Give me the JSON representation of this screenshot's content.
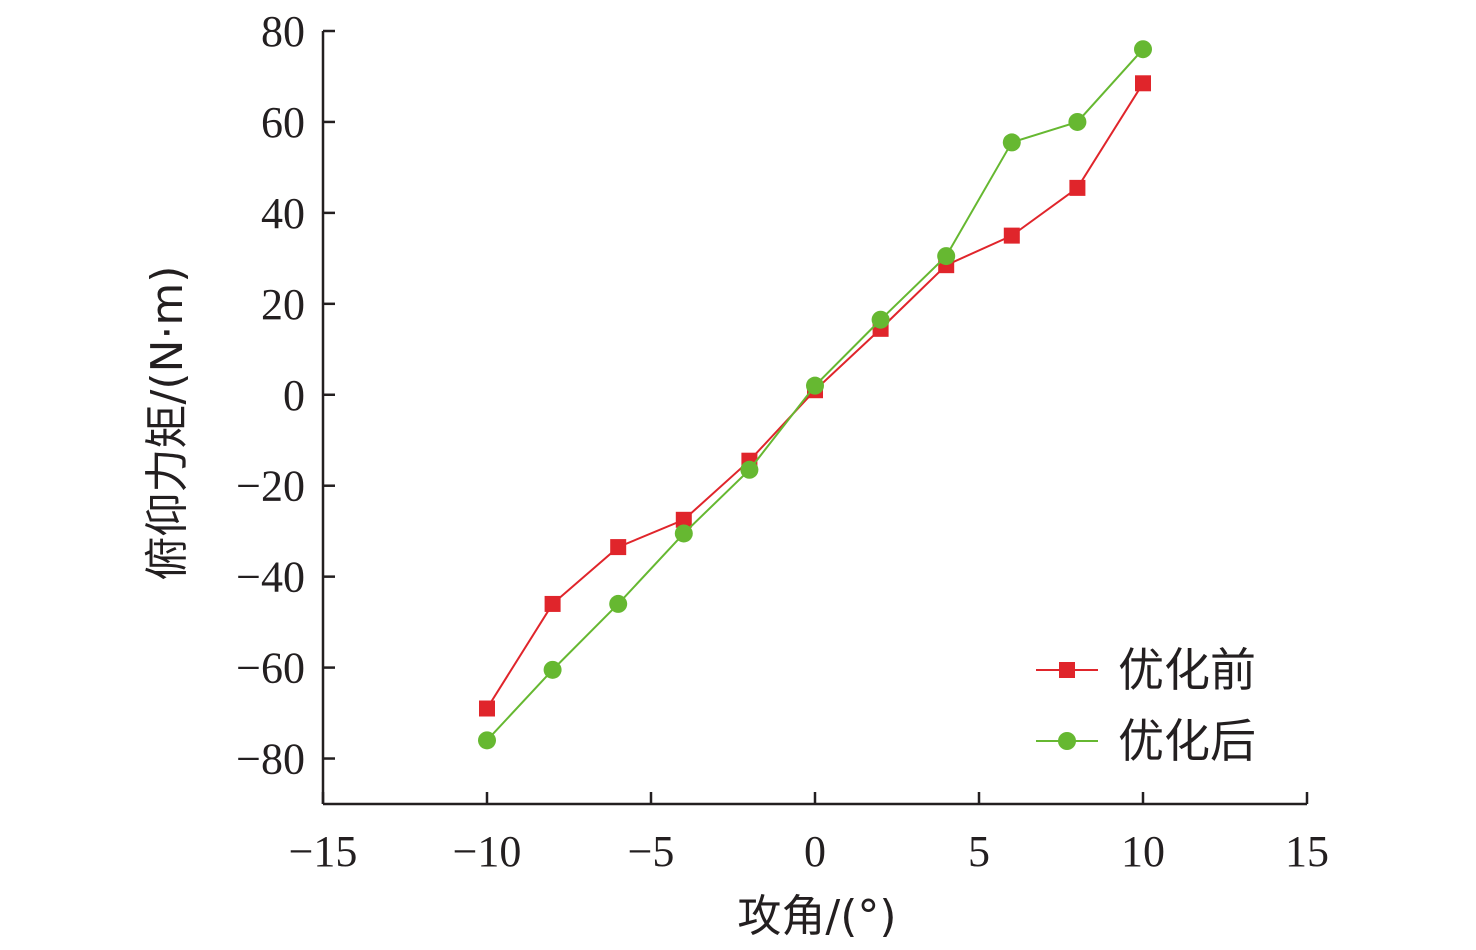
{
  "chart_data": {
    "type": "line",
    "xlabel": "攻角/(°)",
    "ylabel": "俯仰力矩/(N·m)",
    "xlim": [
      -15,
      15
    ],
    "ylim": [
      -90,
      80
    ],
    "xticks": [
      -15,
      -10,
      -5,
      0,
      5,
      10,
      15
    ],
    "yticks": [
      -80,
      -60,
      -40,
      -20,
      0,
      20,
      40,
      60,
      80
    ],
    "xtick_labels": [
      "−15",
      "−10",
      "−5",
      "0",
      "5",
      "10",
      "15"
    ],
    "ytick_labels": [
      "−80",
      "−60",
      "−40",
      "−20",
      "0",
      "20",
      "40",
      "60",
      "80"
    ],
    "legend_position": "bottom-right",
    "series": [
      {
        "name": "优化前",
        "color": "#e0252b",
        "marker": "square",
        "x": [
          -10,
          -8,
          -6,
          -4,
          -2,
          0,
          2,
          4,
          6,
          8,
          10
        ],
        "y": [
          -69,
          -46,
          -33.5,
          -27.5,
          -14.5,
          1,
          14.5,
          28.5,
          35,
          45.5,
          68.5
        ]
      },
      {
        "name": "优化后",
        "color": "#66b831",
        "marker": "circle",
        "x": [
          -10,
          -8,
          -6,
          -4,
          -2,
          0,
          2,
          4,
          6,
          8,
          10
        ],
        "y": [
          -76,
          -60.5,
          -46,
          -30.5,
          -16.5,
          2,
          16.5,
          30.5,
          55.5,
          60,
          76
        ]
      }
    ]
  }
}
